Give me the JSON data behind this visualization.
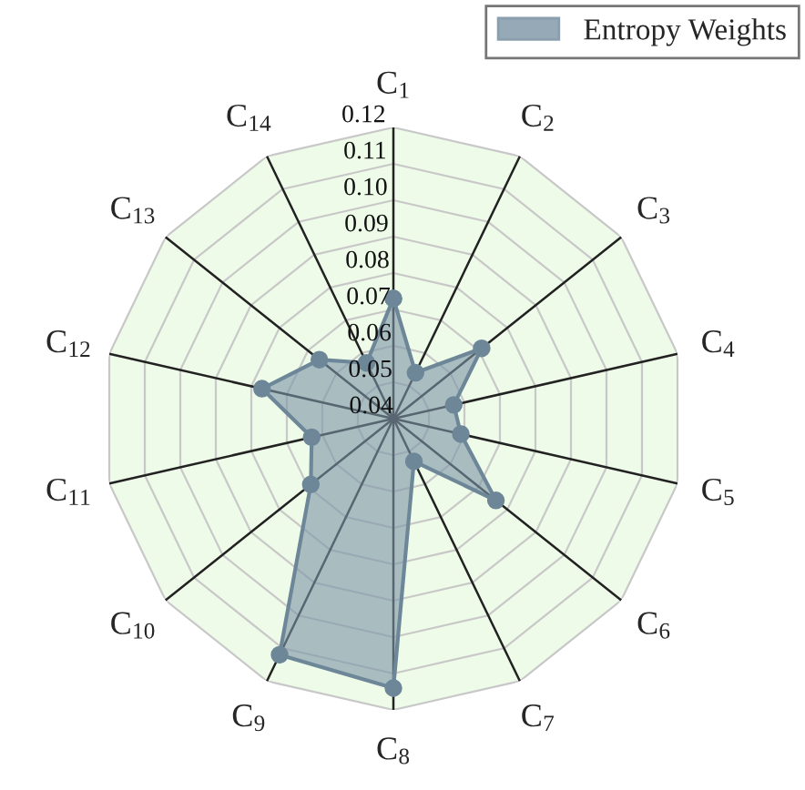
{
  "chart_data": {
    "type": "radar",
    "categories": [
      "C$_{1}$",
      "C$_{2}$",
      "C$_{3}$",
      "C$_{4}$",
      "C$_{5}$",
      "C$_{6}$",
      "C$_{7}$",
      "C$_{8}$",
      "C$_{9}$",
      "C$_{10}$",
      "C$_{11}$",
      "C$_{12}$",
      "C$_{13}$",
      "C$_{14}$"
    ],
    "series": [
      {
        "name": "Entropy Weights",
        "color": "#7b94a6",
        "values": [
          0.073,
          0.054,
          0.071,
          0.057,
          0.059,
          0.076,
          0.053,
          0.114,
          0.112,
          0.069,
          0.063,
          0.077,
          0.066,
          0.057
        ]
      }
    ],
    "ylim": [
      0.04,
      0.12
    ],
    "yticks": [
      {
        "value": 0.04,
        "label": "0.04"
      },
      {
        "value": 0.05,
        "label": "0.05"
      },
      {
        "value": 0.06,
        "label": "0.06"
      },
      {
        "value": 0.07,
        "label": "0.07"
      },
      {
        "value": 0.08,
        "label": "0.08"
      },
      {
        "value": 0.09,
        "label": "0.09"
      },
      {
        "value": 0.1,
        "label": "0.10"
      },
      {
        "value": 0.11,
        "label": "0.11"
      },
      {
        "value": 0.12,
        "label": "0.12"
      }
    ],
    "grid": true,
    "legend": "top right",
    "marker": "circle"
  }
}
